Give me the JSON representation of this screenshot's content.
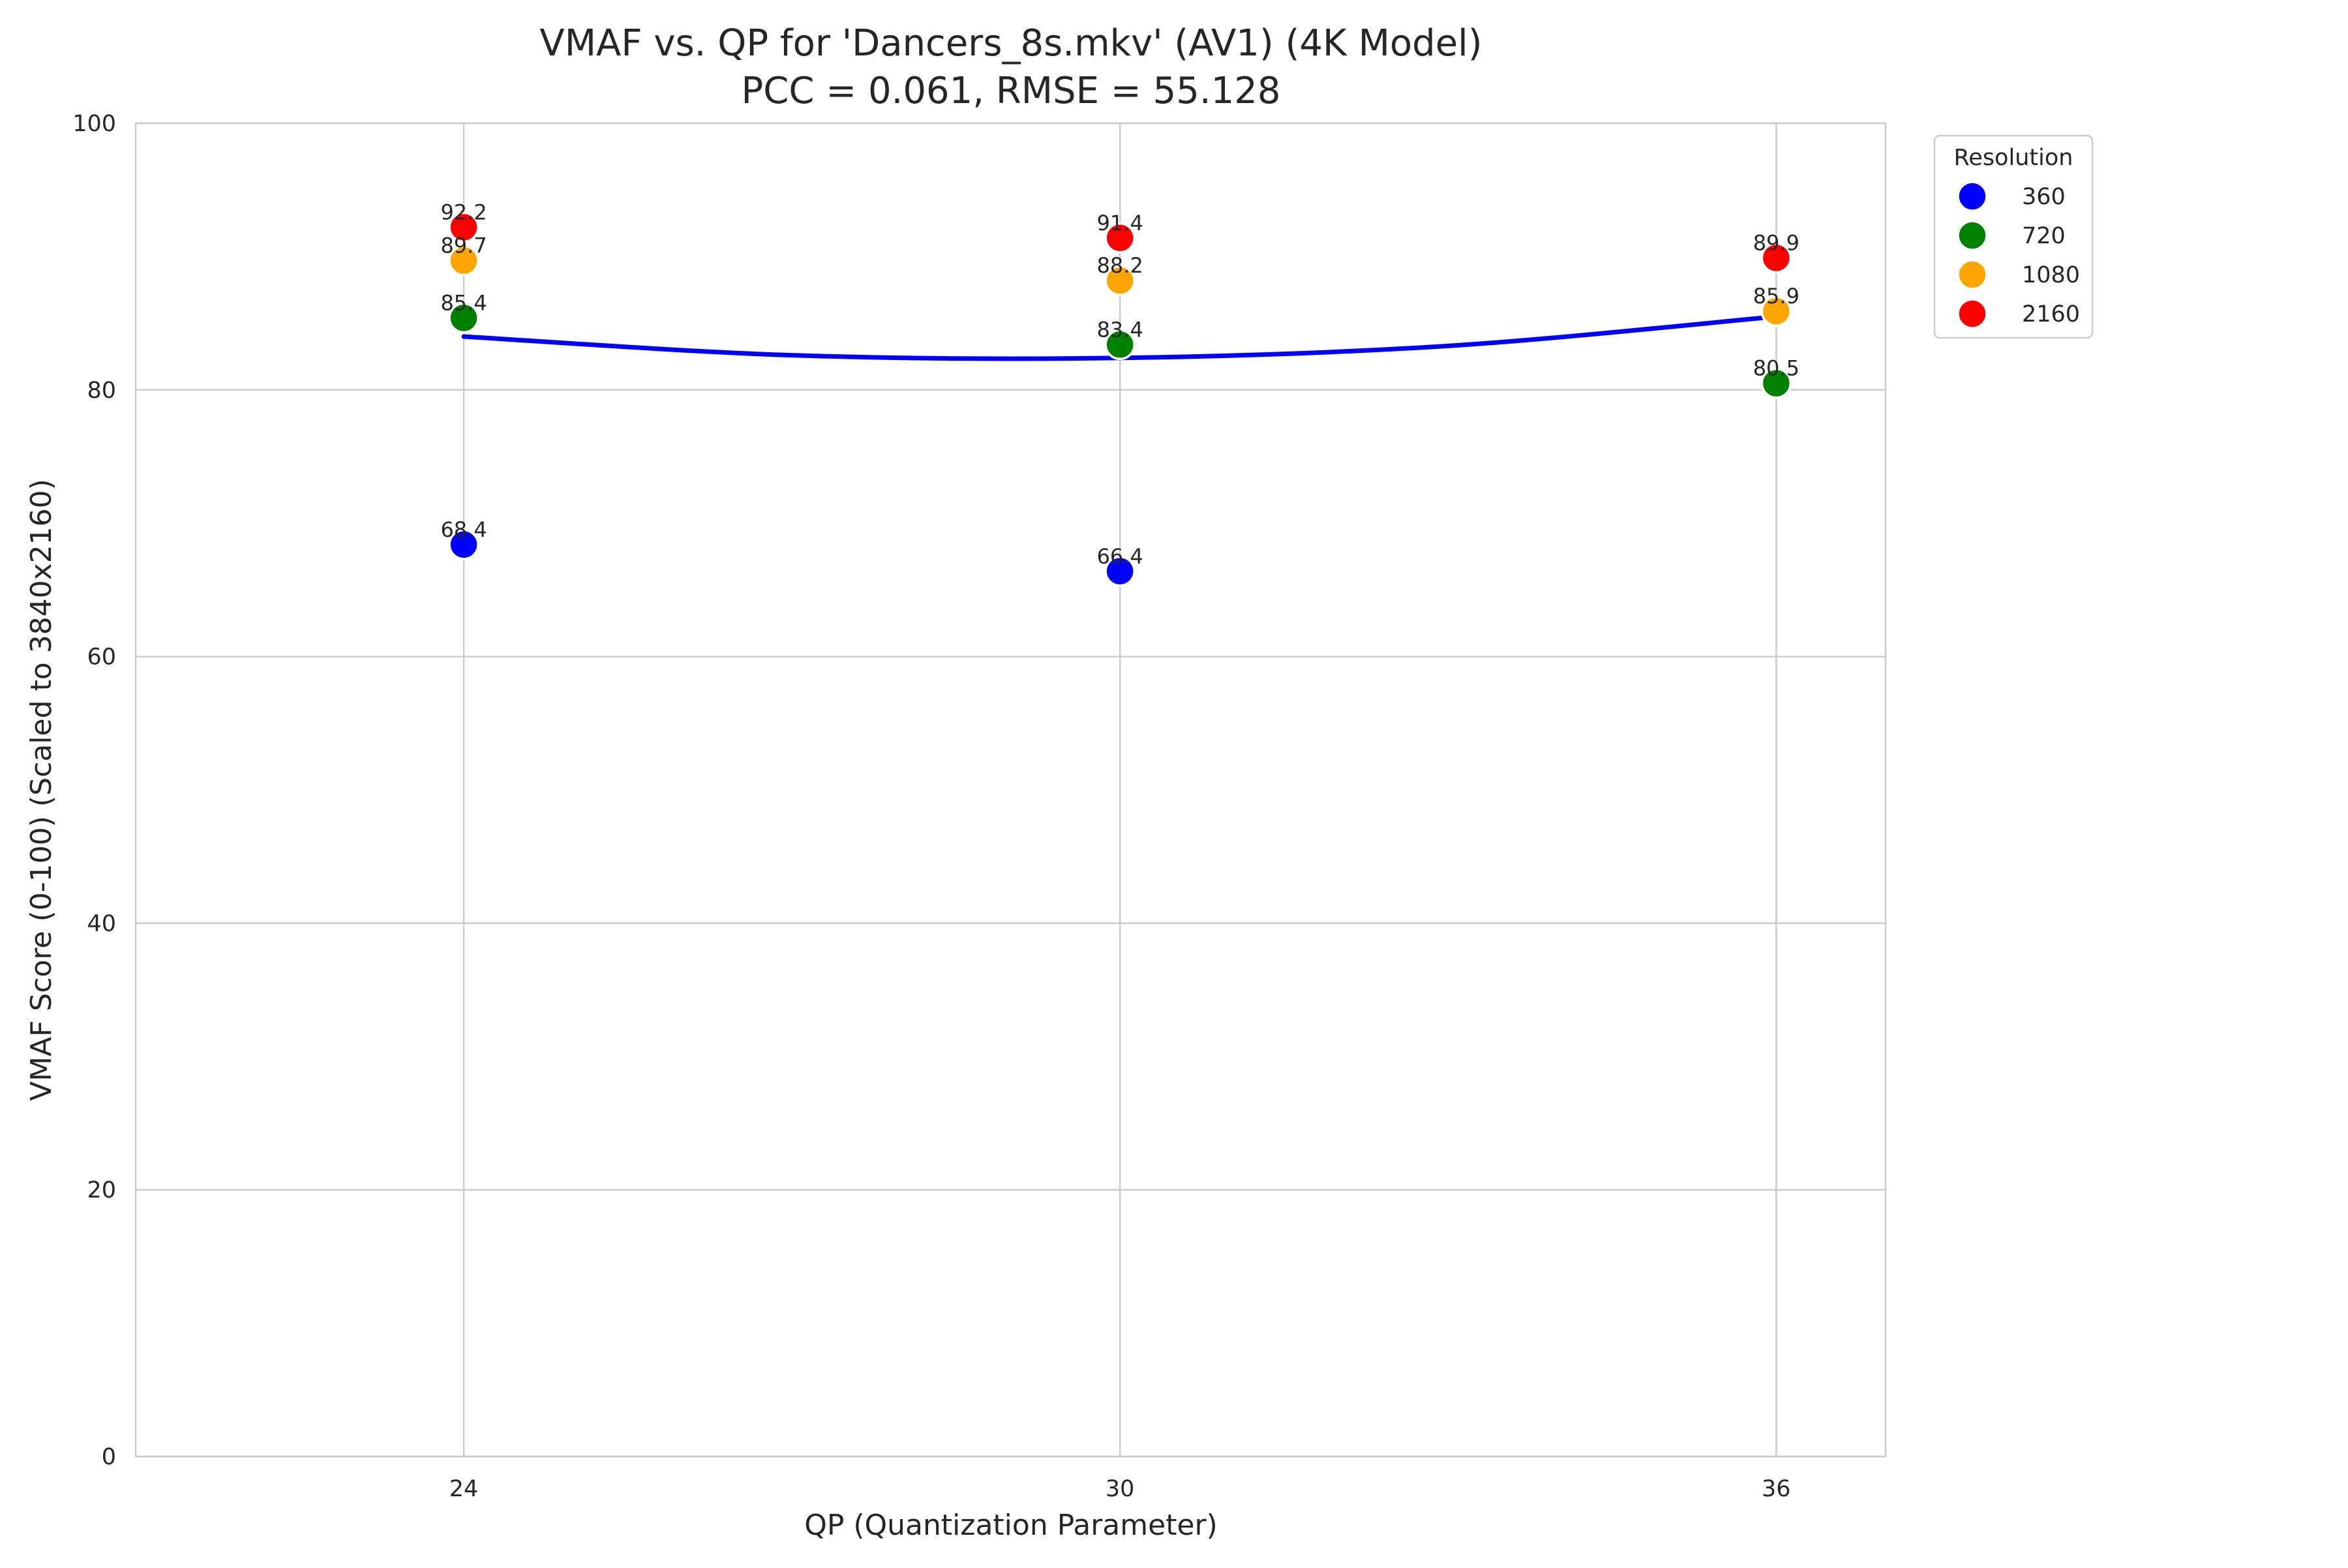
{
  "chart_data": {
    "type": "scatter",
    "title": "VMAF vs. QP for 'Dancers_8s.mkv' (AV1) (4K Model)",
    "subtitle": "PCC = 0.061, RMSE = 55.128",
    "xlabel": "QP (Quantization Parameter)",
    "ylabel": "VMAF Score (0-100) (Scaled to 3840x2160)",
    "xlim": [
      21,
      37
    ],
    "ylim": [
      0,
      100
    ],
    "xticks": [
      24,
      30,
      36
    ],
    "yticks": [
      0,
      20,
      40,
      60,
      80,
      100
    ],
    "grid": true,
    "legend": {
      "title": "Resolution",
      "placement": "outside-top-right"
    },
    "series": [
      {
        "name": "360",
        "color": "#0000ff",
        "points": [
          {
            "x": 24,
            "y": 68.4,
            "label": "68.4"
          },
          {
            "x": 30,
            "y": 66.4,
            "label": "66.4"
          }
        ]
      },
      {
        "name": "720",
        "color": "#008000",
        "points": [
          {
            "x": 24,
            "y": 85.4,
            "label": "85.4"
          },
          {
            "x": 30,
            "y": 83.4,
            "label": "83.4"
          },
          {
            "x": 36,
            "y": 80.5,
            "label": "80.5"
          }
        ]
      },
      {
        "name": "1080",
        "color": "#ffa500",
        "points": [
          {
            "x": 24,
            "y": 89.7,
            "label": "89.7"
          },
          {
            "x": 30,
            "y": 88.2,
            "label": "88.2"
          },
          {
            "x": 36,
            "y": 85.9,
            "label": "85.9"
          }
        ]
      },
      {
        "name": "2160",
        "color": "#ff0000",
        "points": [
          {
            "x": 24,
            "y": 92.2,
            "label": "92.2"
          },
          {
            "x": 30,
            "y": 91.4,
            "label": "91.4"
          },
          {
            "x": 36,
            "y": 89.9,
            "label": "89.9"
          }
        ]
      }
    ],
    "fit_line": {
      "color": "#0000ff",
      "points": [
        {
          "x": 24,
          "y": 84.0
        },
        {
          "x": 27,
          "y": 82.6
        },
        {
          "x": 30,
          "y": 82.4
        },
        {
          "x": 33,
          "y": 83.3
        },
        {
          "x": 36,
          "y": 85.5
        }
      ]
    }
  }
}
